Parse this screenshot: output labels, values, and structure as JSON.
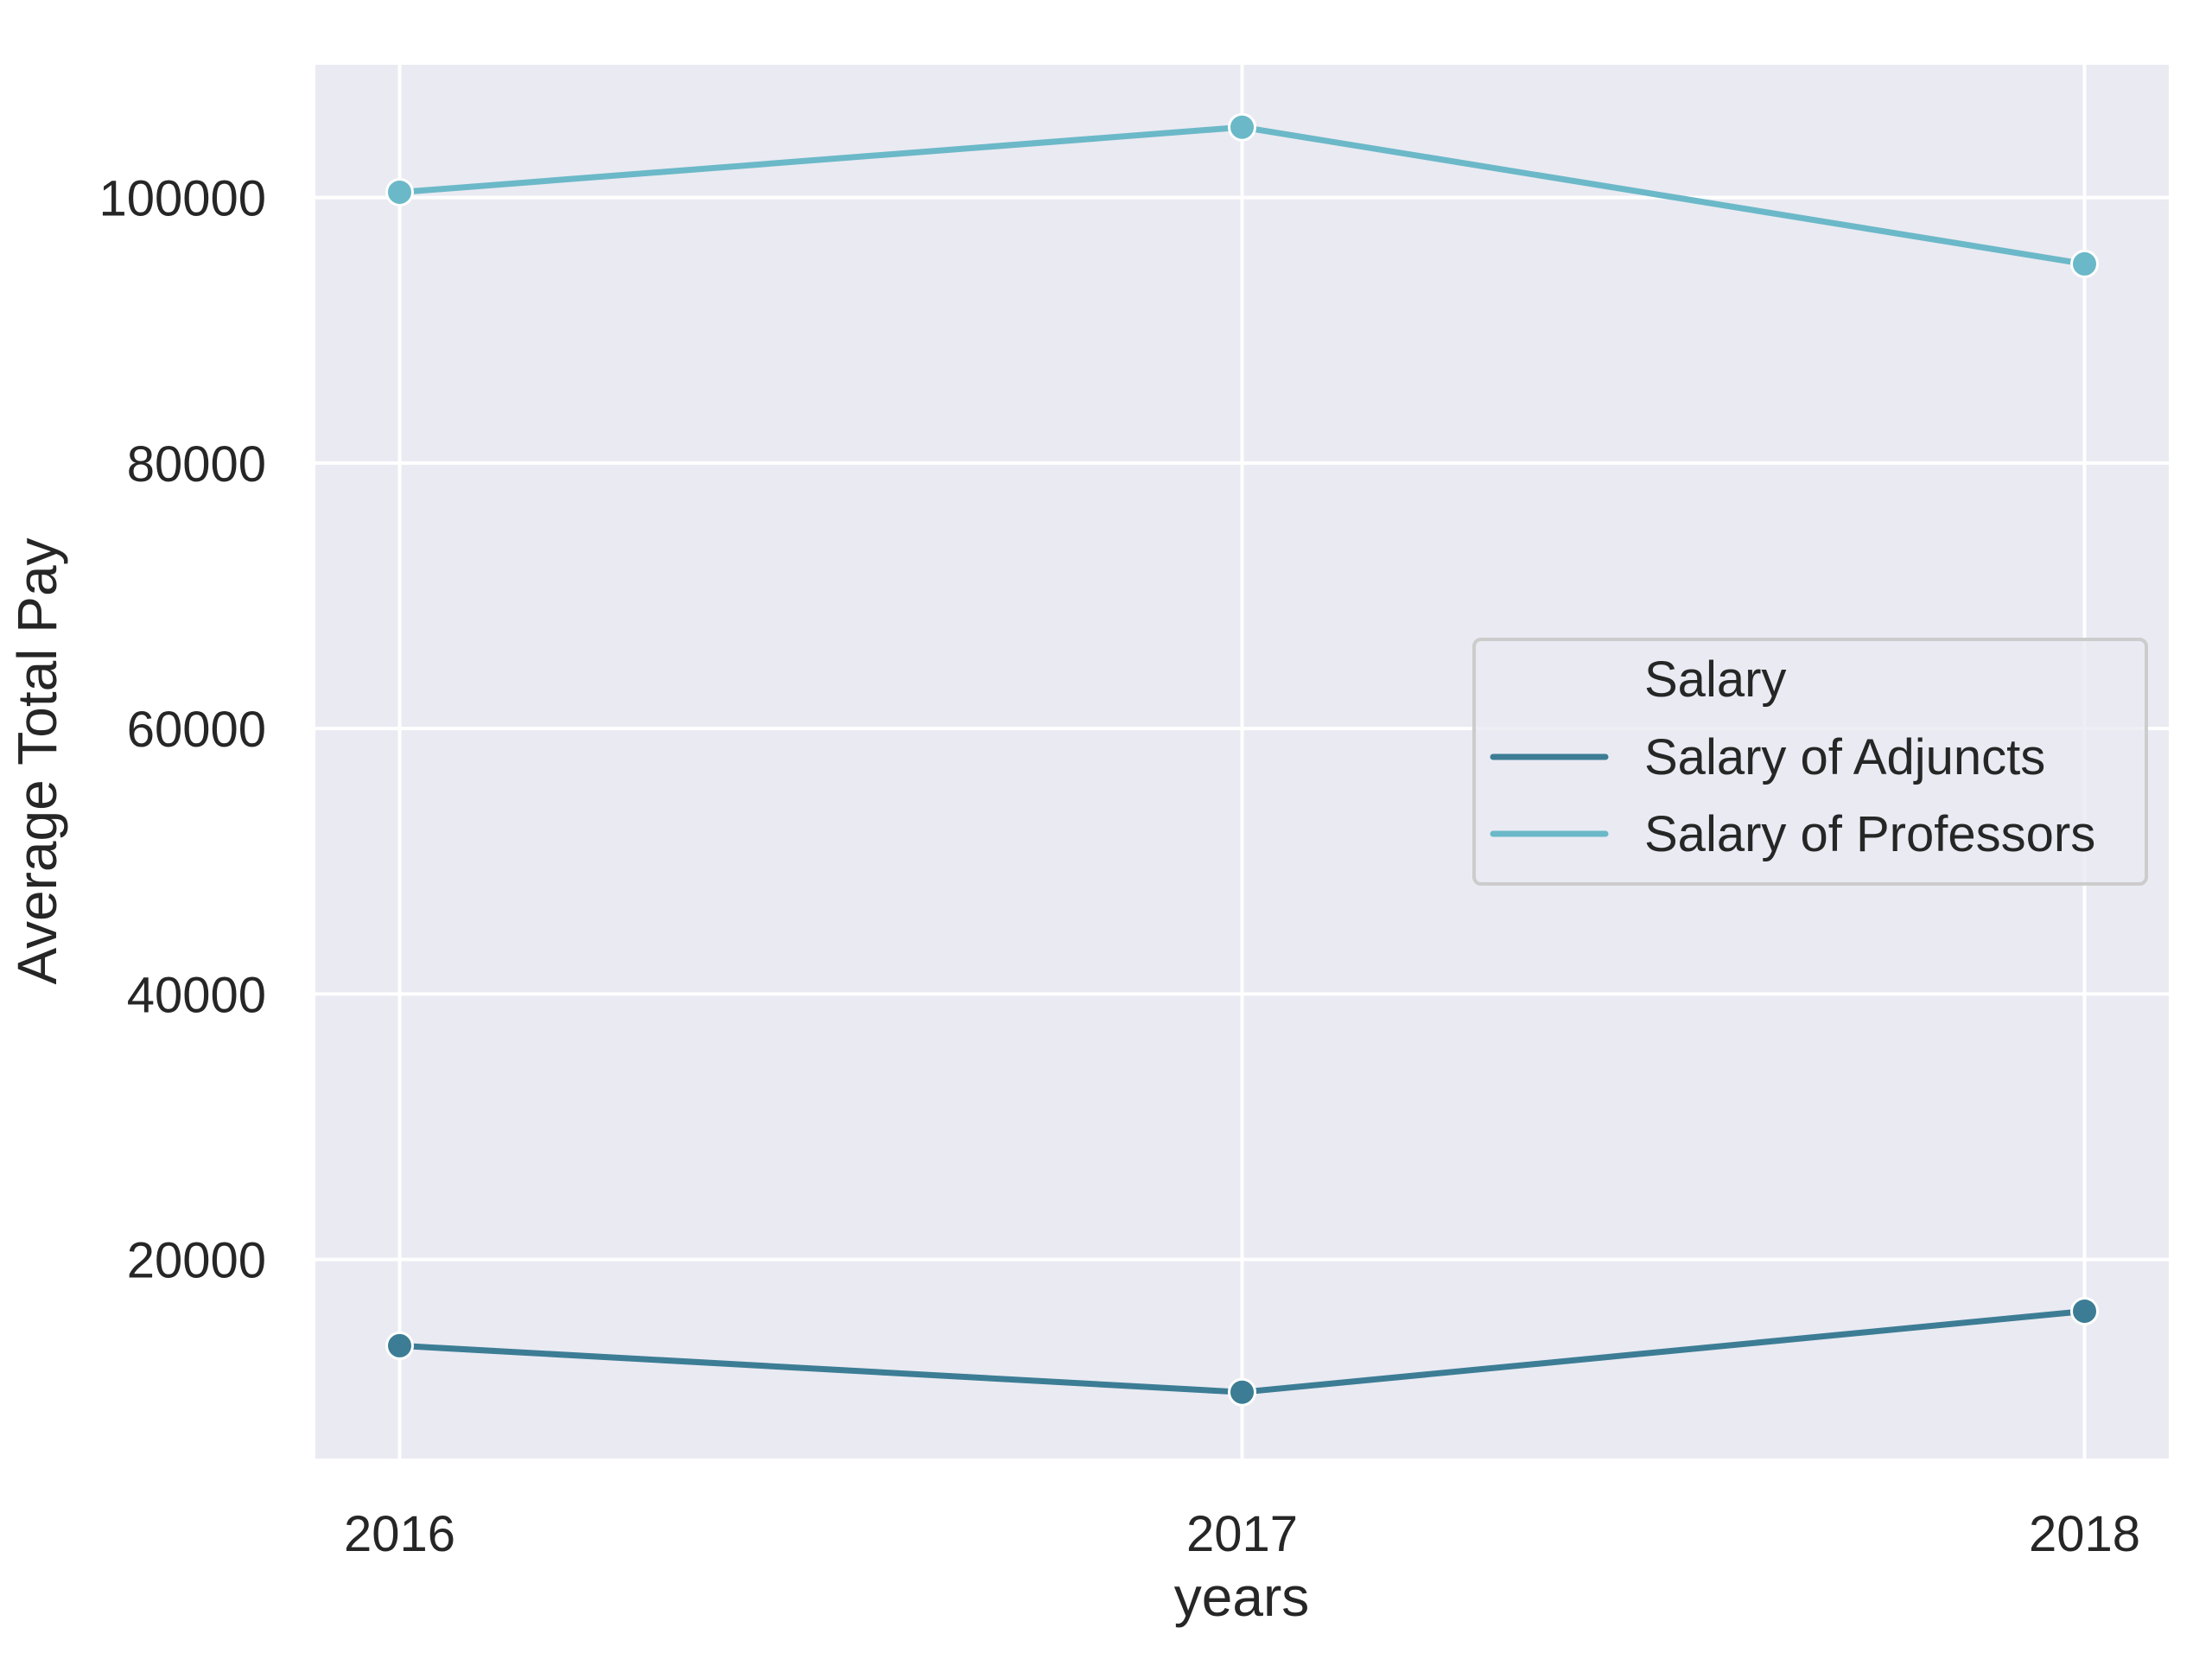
{
  "chart_data": {
    "type": "line",
    "title": "",
    "xlabel": "years",
    "ylabel": "Average Total Pay",
    "categories": [
      "2016",
      "2017",
      "2018"
    ],
    "x": [
      2016,
      2017,
      2018
    ],
    "xlim": [
      2015.9,
      2018.1
    ],
    "ylim": [
      5000,
      110000
    ],
    "yticks": [
      20000,
      40000,
      60000,
      80000,
      100000
    ],
    "grid": true,
    "legend": {
      "title": "Salary",
      "placement": "center-right"
    },
    "series": [
      {
        "name": "Salary of Adjuncts",
        "color": "#3c7d95",
        "values": [
          13500,
          10000,
          16100
        ]
      },
      {
        "name": "Salary of Professors",
        "color": "#6bb8c8",
        "values": [
          100400,
          105300,
          95000
        ]
      }
    ],
    "colors": {
      "plot_background": "#eaeaf2",
      "grid": "#ffffff"
    }
  }
}
